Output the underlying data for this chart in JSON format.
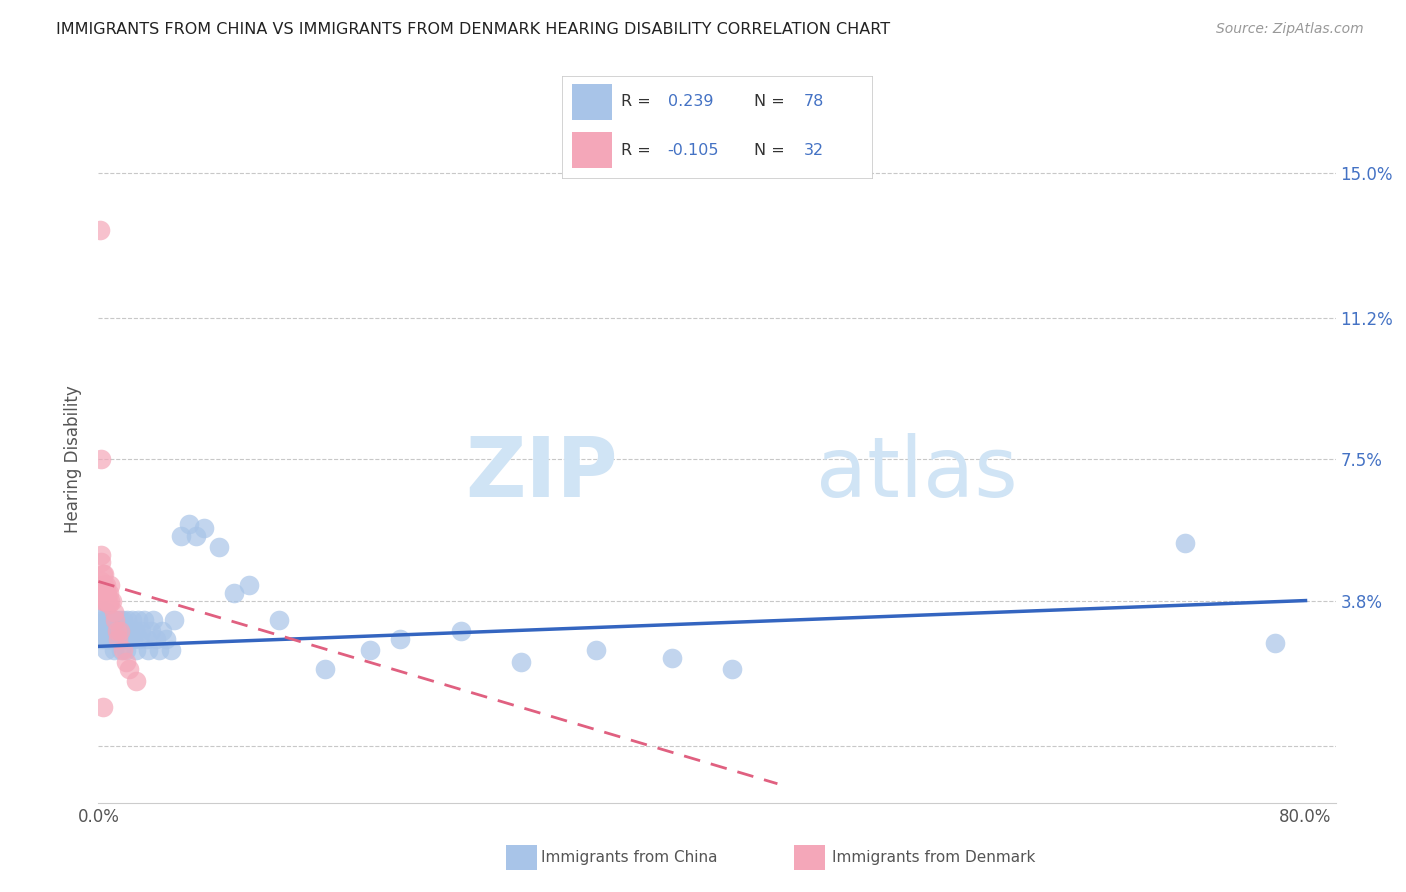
{
  "title": "IMMIGRANTS FROM CHINA VS IMMIGRANTS FROM DENMARK HEARING DISABILITY CORRELATION CHART",
  "source": "Source: ZipAtlas.com",
  "ylabel": "Hearing Disability",
  "y_tick_positions": [
    0.0,
    0.038,
    0.075,
    0.112,
    0.15
  ],
  "y_tick_labels": [
    "",
    "3.8%",
    "7.5%",
    "11.2%",
    "15.0%"
  ],
  "xlim": [
    0.0,
    0.82
  ],
  "ylim": [
    -0.015,
    0.165
  ],
  "china_color": "#a8c4e8",
  "denmark_color": "#f4a7b9",
  "china_line_color": "#3465c0",
  "denmark_line_color": "#e06080",
  "legend_r_color": "#4472C4",
  "watermark_color": "#d0e4f5",
  "china_R": 0.239,
  "china_N": 78,
  "denmark_R": -0.105,
  "denmark_N": 32,
  "legend_label_china": "Immigrants from China",
  "legend_label_denmark": "Immigrants from Denmark",
  "background_color": "#ffffff",
  "grid_color": "#c8c8c8",
  "title_color": "#222222",
  "china_line_x0": 0.0,
  "china_line_y0": 0.026,
  "china_line_x1": 0.8,
  "china_line_y1": 0.038,
  "denmark_line_x0": 0.0,
  "denmark_line_y0": 0.043,
  "denmark_line_x1": 0.45,
  "denmark_line_y1": -0.01,
  "china_scatter_x": [
    0.001,
    0.002,
    0.002,
    0.003,
    0.003,
    0.003,
    0.004,
    0.004,
    0.005,
    0.005,
    0.005,
    0.006,
    0.006,
    0.006,
    0.007,
    0.007,
    0.007,
    0.008,
    0.008,
    0.008,
    0.009,
    0.009,
    0.01,
    0.01,
    0.01,
    0.011,
    0.011,
    0.012,
    0.012,
    0.013,
    0.013,
    0.014,
    0.014,
    0.015,
    0.015,
    0.016,
    0.017,
    0.018,
    0.018,
    0.019,
    0.02,
    0.021,
    0.022,
    0.023,
    0.024,
    0.025,
    0.026,
    0.027,
    0.028,
    0.03,
    0.032,
    0.033,
    0.035,
    0.036,
    0.038,
    0.04,
    0.042,
    0.045,
    0.048,
    0.05,
    0.055,
    0.06,
    0.065,
    0.07,
    0.08,
    0.09,
    0.1,
    0.12,
    0.15,
    0.18,
    0.2,
    0.24,
    0.28,
    0.33,
    0.38,
    0.42,
    0.72,
    0.78
  ],
  "china_scatter_y": [
    0.03,
    0.032,
    0.028,
    0.03,
    0.033,
    0.035,
    0.028,
    0.032,
    0.03,
    0.025,
    0.035,
    0.028,
    0.03,
    0.033,
    0.028,
    0.03,
    0.032,
    0.028,
    0.03,
    0.033,
    0.028,
    0.03,
    0.025,
    0.03,
    0.033,
    0.028,
    0.032,
    0.03,
    0.033,
    0.028,
    0.03,
    0.033,
    0.028,
    0.03,
    0.025,
    0.033,
    0.028,
    0.03,
    0.025,
    0.033,
    0.028,
    0.03,
    0.033,
    0.028,
    0.03,
    0.025,
    0.033,
    0.028,
    0.03,
    0.033,
    0.028,
    0.025,
    0.03,
    0.033,
    0.028,
    0.025,
    0.03,
    0.028,
    0.025,
    0.033,
    0.055,
    0.058,
    0.055,
    0.057,
    0.052,
    0.04,
    0.042,
    0.033,
    0.02,
    0.025,
    0.028,
    0.03,
    0.022,
    0.025,
    0.023,
    0.02,
    0.053,
    0.027
  ],
  "denmark_scatter_x": [
    0.001,
    0.001,
    0.002,
    0.002,
    0.002,
    0.003,
    0.003,
    0.003,
    0.004,
    0.004,
    0.004,
    0.005,
    0.005,
    0.005,
    0.006,
    0.006,
    0.007,
    0.007,
    0.008,
    0.008,
    0.009,
    0.01,
    0.011,
    0.012,
    0.013,
    0.014,
    0.016,
    0.018,
    0.02,
    0.025,
    0.002,
    0.003
  ],
  "denmark_scatter_y": [
    0.135,
    0.04,
    0.048,
    0.043,
    0.05,
    0.042,
    0.045,
    0.038,
    0.042,
    0.038,
    0.045,
    0.04,
    0.042,
    0.038,
    0.04,
    0.038,
    0.04,
    0.037,
    0.038,
    0.042,
    0.038,
    0.035,
    0.033,
    0.03,
    0.028,
    0.03,
    0.025,
    0.022,
    0.02,
    0.017,
    0.075,
    0.01
  ]
}
